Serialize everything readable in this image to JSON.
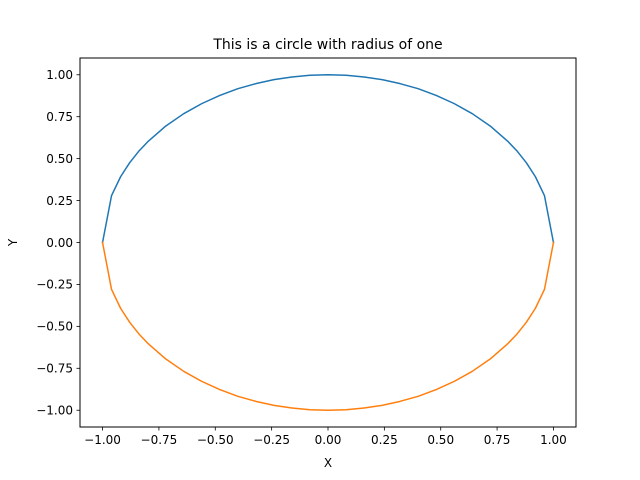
{
  "chart_data": {
    "type": "line",
    "title": "This is a circle with radius of one",
    "xlabel": "X",
    "ylabel": "Y",
    "xlim": [
      -1.1,
      1.1
    ],
    "ylim": [
      -1.1,
      1.1
    ],
    "grid": false,
    "x_ticks": [
      -1.0,
      -0.75,
      -0.5,
      -0.25,
      0.0,
      0.25,
      0.5,
      0.75,
      1.0
    ],
    "x_tick_labels": [
      "−1.00",
      "−0.75",
      "−0.50",
      "−0.25",
      "0.00",
      "0.25",
      "0.50",
      "0.75",
      "1.00"
    ],
    "y_ticks": [
      -1.0,
      -0.75,
      -0.5,
      -0.25,
      0.0,
      0.25,
      0.5,
      0.75,
      1.0
    ],
    "y_tick_labels": [
      "−1.00",
      "−0.75",
      "−0.50",
      "−0.25",
      "0.00",
      "0.25",
      "0.50",
      "0.75",
      "1.00"
    ],
    "series": [
      {
        "color": "#1f77b4",
        "x": [
          -1.0,
          -0.96,
          -0.92,
          -0.88,
          -0.84,
          -0.8,
          -0.72,
          -0.64,
          -0.56,
          -0.48,
          -0.4,
          -0.32,
          -0.24,
          -0.16,
          -0.08,
          0.0,
          0.08,
          0.16,
          0.24,
          0.32,
          0.4,
          0.48,
          0.56,
          0.64,
          0.72,
          0.8,
          0.84,
          0.88,
          0.92,
          0.96,
          1.0
        ],
        "y": [
          0.0,
          0.28,
          0.392,
          0.475,
          0.543,
          0.6,
          0.694,
          0.768,
          0.828,
          0.877,
          0.917,
          0.947,
          0.971,
          0.987,
          0.997,
          1.0,
          0.997,
          0.987,
          0.971,
          0.947,
          0.917,
          0.877,
          0.828,
          0.768,
          0.694,
          0.6,
          0.543,
          0.475,
          0.392,
          0.28,
          0.0
        ]
      },
      {
        "color": "#ff7f0e",
        "x": [
          -1.0,
          -0.96,
          -0.92,
          -0.88,
          -0.84,
          -0.8,
          -0.72,
          -0.64,
          -0.56,
          -0.48,
          -0.4,
          -0.32,
          -0.24,
          -0.16,
          -0.08,
          0.0,
          0.08,
          0.16,
          0.24,
          0.32,
          0.4,
          0.48,
          0.56,
          0.64,
          0.72,
          0.8,
          0.84,
          0.88,
          0.92,
          0.96,
          1.0
        ],
        "y": [
          0.0,
          -0.28,
          -0.392,
          -0.475,
          -0.543,
          -0.6,
          -0.694,
          -0.768,
          -0.828,
          -0.877,
          -0.917,
          -0.947,
          -0.971,
          -0.987,
          -0.997,
          -1.0,
          -0.997,
          -0.987,
          -0.971,
          -0.947,
          -0.917,
          -0.877,
          -0.828,
          -0.768,
          -0.694,
          -0.6,
          -0.543,
          -0.475,
          -0.392,
          -0.28,
          0.0
        ]
      }
    ]
  }
}
